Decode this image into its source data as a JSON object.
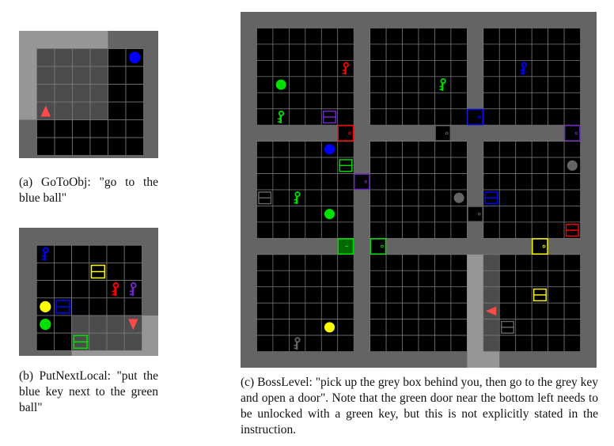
{
  "colors": {
    "wall": "#646464",
    "floor": "#000000",
    "grid_line": "#7a7a7a",
    "visible_wall": "#969696",
    "visible_floor": "#4c4c4c",
    "red": "#ff0000",
    "green": "#00e000",
    "blue": "#0000ff",
    "purple": "#7027c3",
    "yellow": "#ffff00",
    "grey": "#646464",
    "agent": "#ff4a4a",
    "locked_green": "#006a00"
  },
  "panels": [
    {
      "id": "gotoobj",
      "caption": "(a) GoToObj: \"go to the blue ball\"",
      "grid_size": 8,
      "visible_region": {
        "cols": [
          0,
          4
        ],
        "rows": [
          0,
          4
        ]
      },
      "objects": [
        {
          "type": "ball",
          "color": "blue",
          "col": 6,
          "row": 1
        },
        {
          "type": "agent",
          "dir": "up",
          "col": 1,
          "row": 4
        }
      ]
    },
    {
      "id": "putnextlocal",
      "caption": "(b) PutNextLocal: \"put the blue key next to the green ball\"",
      "grid_size": 8,
      "visible_region": {
        "cols": [
          3,
          7
        ],
        "rows": [
          5,
          7
        ]
      },
      "objects": [
        {
          "type": "key",
          "color": "blue",
          "col": 1,
          "row": 1
        },
        {
          "type": "box",
          "color": "yellow",
          "col": 4,
          "row": 2
        },
        {
          "type": "key",
          "color": "red",
          "col": 5,
          "row": 3
        },
        {
          "type": "key",
          "color": "purple",
          "col": 6,
          "row": 3
        },
        {
          "type": "ball",
          "color": "yellow",
          "col": 1,
          "row": 4
        },
        {
          "type": "box",
          "color": "blue",
          "col": 2,
          "row": 4
        },
        {
          "type": "ball",
          "color": "green",
          "col": 1,
          "row": 5
        },
        {
          "type": "agent",
          "dir": "down",
          "col": 6,
          "row": 5
        },
        {
          "type": "box",
          "color": "green",
          "col": 3,
          "row": 6
        }
      ]
    },
    {
      "id": "bosslevel",
      "caption": "(c) BossLevel: \"pick up the grey box behind you, then go to the grey key and open a door\". Note that the green door near the bottom left needs to be unlocked with a green key, but this is not explicitly stated in the instruction.",
      "grid_size": 22,
      "room_walls": [
        0,
        7,
        14,
        21
      ],
      "visible_region": {
        "cols": [
          14,
          15
        ],
        "rows": [
          15,
          21
        ]
      },
      "objects": [
        {
          "type": "key",
          "color": "red",
          "col": 6,
          "row": 3
        },
        {
          "type": "ball",
          "color": "green",
          "col": 2,
          "row": 4
        },
        {
          "type": "key",
          "color": "green",
          "col": 2,
          "row": 6
        },
        {
          "type": "box",
          "color": "purple",
          "col": 5,
          "row": 6
        },
        {
          "type": "door",
          "color": "red",
          "col": 6,
          "row": 7
        },
        {
          "type": "key",
          "color": "green",
          "col": 12,
          "row": 4
        },
        {
          "type": "key",
          "color": "blue",
          "col": 17,
          "row": 3
        },
        {
          "type": "door",
          "color": "blue",
          "col": 14,
          "row": 6
        },
        {
          "type": "door",
          "color": "grey",
          "col": 12,
          "row": 7
        },
        {
          "type": "door",
          "color": "purple",
          "col": 20,
          "row": 7
        },
        {
          "type": "ball",
          "color": "blue",
          "col": 5,
          "row": 8
        },
        {
          "type": "box",
          "color": "green",
          "col": 6,
          "row": 9
        },
        {
          "type": "door",
          "color": "purple",
          "col": 7,
          "row": 10
        },
        {
          "type": "box",
          "color": "grey",
          "col": 1,
          "row": 11
        },
        {
          "type": "key",
          "color": "green",
          "col": 3,
          "row": 11
        },
        {
          "type": "ball",
          "color": "green",
          "col": 5,
          "row": 12
        },
        {
          "type": "ball",
          "color": "grey",
          "col": 13,
          "row": 11
        },
        {
          "type": "ball",
          "color": "grey",
          "col": 20,
          "row": 9
        },
        {
          "type": "box",
          "color": "blue",
          "col": 15,
          "row": 11
        },
        {
          "type": "door",
          "color": "grey",
          "col": 14,
          "row": 12
        },
        {
          "type": "box",
          "color": "red",
          "col": 20,
          "row": 13
        },
        {
          "type": "door",
          "color": "green",
          "locked": true,
          "col": 6,
          "row": 14
        },
        {
          "type": "door",
          "color": "green",
          "col": 8,
          "row": 14
        },
        {
          "type": "door",
          "color": "yellow",
          "col": 18,
          "row": 14
        },
        {
          "type": "box",
          "color": "yellow",
          "col": 18,
          "row": 17
        },
        {
          "type": "agent",
          "dir": "left",
          "col": 15,
          "row": 18
        },
        {
          "type": "box",
          "color": "grey",
          "col": 16,
          "row": 19
        },
        {
          "type": "ball",
          "color": "yellow",
          "col": 5,
          "row": 19
        },
        {
          "type": "key",
          "color": "grey",
          "col": 3,
          "row": 20
        }
      ]
    }
  ]
}
